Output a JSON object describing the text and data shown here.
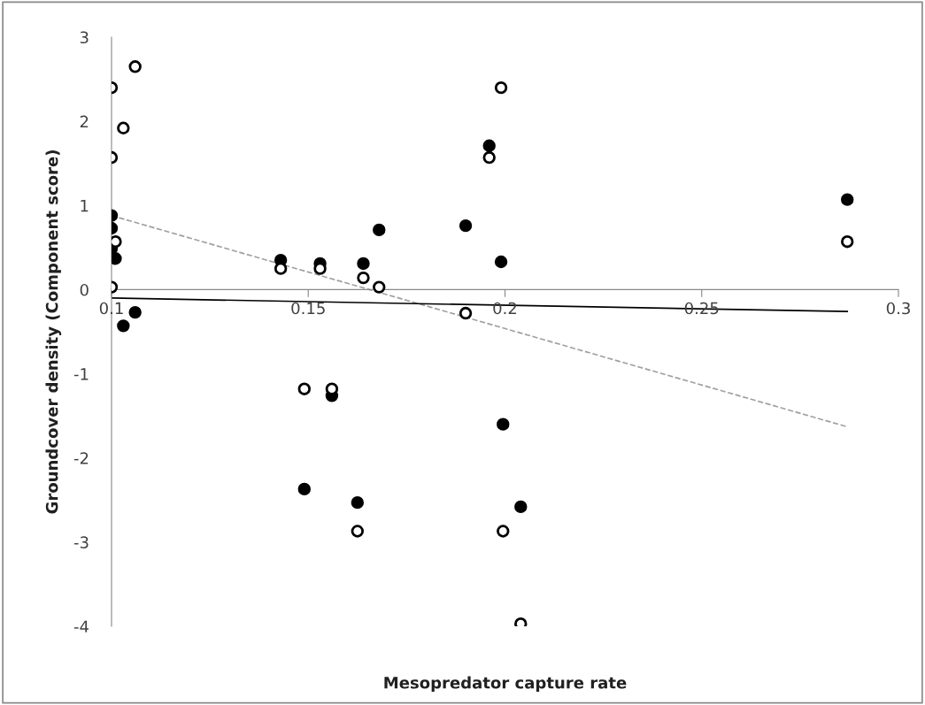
{
  "chart_data": {
    "type": "scatter",
    "xlabel": "Mesopredator capture rate",
    "ylabel": "Groundcover density (Component score)",
    "xlim": [
      0.1,
      0.3
    ],
    "xticks": [
      0.1,
      0.15,
      0.2,
      0.25,
      0.3
    ],
    "ylim": [
      -4,
      3
    ],
    "yticks": [
      -4,
      -3,
      -2,
      -1,
      0,
      1,
      2,
      3
    ],
    "grid": false,
    "legend": false,
    "marker": "circle",
    "series": [
      {
        "type": "scatter",
        "color": "#ffffff",
        "x": [
          0.1,
          0.106,
          0.103,
          0.1,
          0.101,
          0.1,
          0.143,
          0.153,
          0.164,
          0.168,
          0.19,
          0.199,
          0.196,
          0.287,
          0.149,
          0.156,
          0.1625,
          0.1995,
          0.204
        ],
        "values": [
          2.4,
          2.65,
          1.92,
          1.57,
          0.57,
          0.03,
          0.25,
          0.25,
          0.14,
          0.03,
          -0.28,
          2.4,
          1.57,
          0.57,
          -1.18,
          -1.18,
          -2.87,
          -2.87,
          -3.97
        ]
      },
      {
        "type": "scatter",
        "color": "#000000",
        "x": [
          0.1,
          0.1,
          0.1,
          0.101,
          0.106,
          0.103,
          0.143,
          0.153,
          0.164,
          0.168,
          0.19,
          0.196,
          0.199,
          0.287,
          0.156,
          0.149,
          0.1625,
          0.1995,
          0.204
        ],
        "values": [
          0.88,
          0.73,
          0.49,
          0.37,
          -0.27,
          -0.43,
          0.35,
          0.31,
          0.31,
          0.71,
          0.76,
          1.71,
          0.33,
          1.07,
          -1.26,
          -2.37,
          -2.53,
          -1.6,
          -2.58
        ]
      },
      {
        "type": "line",
        "color": "#a0a0a0",
        "line_style": "dashed",
        "marker": "none",
        "x": [
          0.1,
          0.287
        ],
        "values": [
          0.88,
          -1.63
        ]
      },
      {
        "type": "line",
        "color": "#000000",
        "line_style": "solid",
        "marker": "none",
        "x": [
          0.1,
          0.287
        ],
        "values": [
          -0.1,
          -0.26
        ]
      }
    ]
  }
}
